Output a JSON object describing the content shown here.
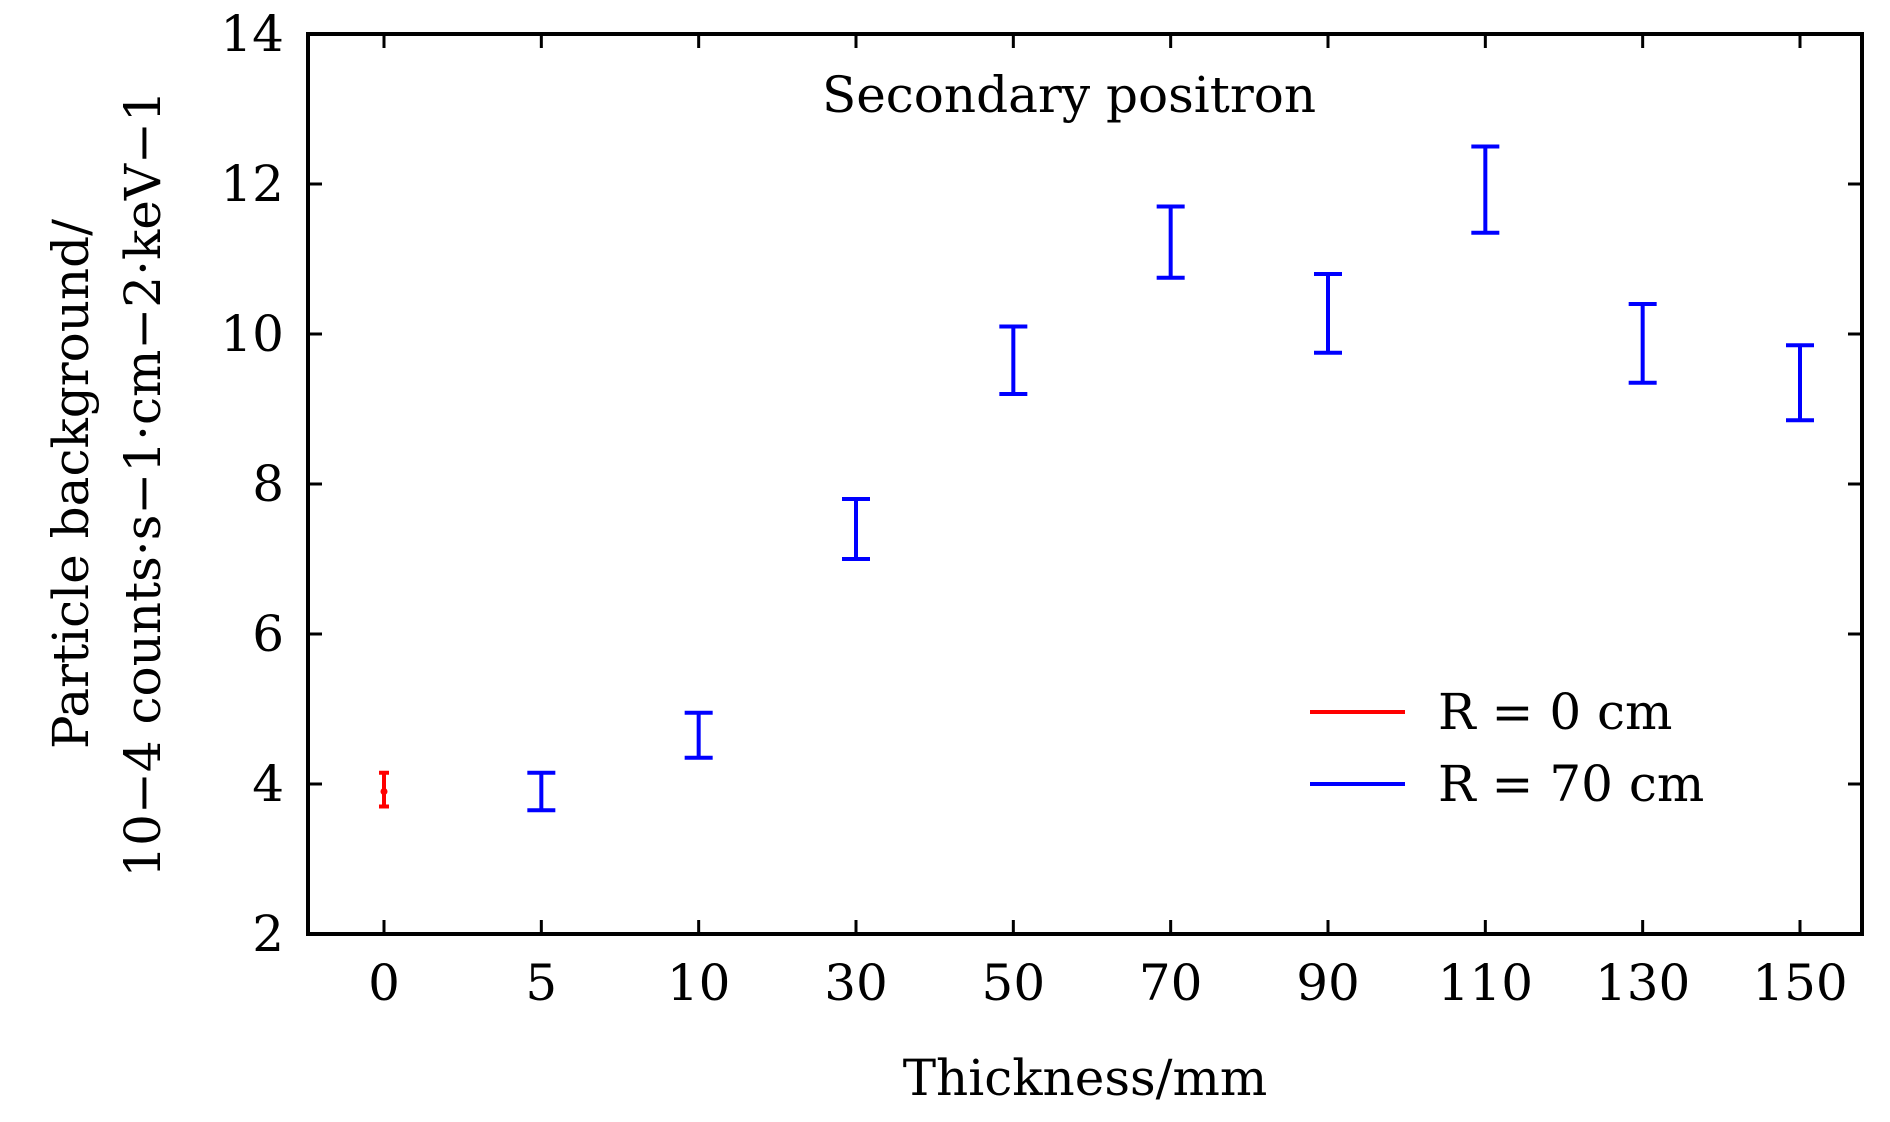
{
  "chart_data": {
    "type": "errorbar",
    "categories": [
      "0",
      "5",
      "10",
      "30",
      "50",
      "70",
      "90",
      "110",
      "130",
      "150"
    ],
    "xlabel": "Thickness/mm",
    "ylabel_line1": "Particle background/",
    "ylabel_line2": "10−4 counts·s−1·cm−2·keV−1",
    "ylim": [
      2,
      14
    ],
    "yticks": [
      "2",
      "4",
      "6",
      "8",
      "10",
      "12",
      "14"
    ],
    "annotation": "Secondary positron",
    "series": [
      {
        "name": "R = 0 cm",
        "color": "#ff0000",
        "points": [
          {
            "category": "0",
            "y": 3.9,
            "low": 3.7,
            "high": 4.15
          }
        ]
      },
      {
        "name": "R = 70 cm",
        "color": "#0000ff",
        "points": [
          {
            "category": "5",
            "y": 3.9,
            "low": 3.65,
            "high": 4.15
          },
          {
            "category": "10",
            "y": 4.65,
            "low": 4.35,
            "high": 4.95
          },
          {
            "category": "30",
            "y": 7.4,
            "low": 7.0,
            "high": 7.8
          },
          {
            "category": "50",
            "y": 9.65,
            "low": 9.2,
            "high": 10.1
          },
          {
            "category": "70",
            "y": 11.2,
            "low": 10.75,
            "high": 11.7
          },
          {
            "category": "90",
            "y": 10.3,
            "low": 9.75,
            "high": 10.8
          },
          {
            "category": "110",
            "y": 11.9,
            "low": 11.35,
            "high": 12.5
          },
          {
            "category": "130",
            "y": 9.9,
            "low": 9.35,
            "high": 10.4
          },
          {
            "category": "150",
            "y": 9.35,
            "low": 8.85,
            "high": 9.85
          }
        ]
      }
    ],
    "legend_position": "lower-right",
    "grid": false
  }
}
